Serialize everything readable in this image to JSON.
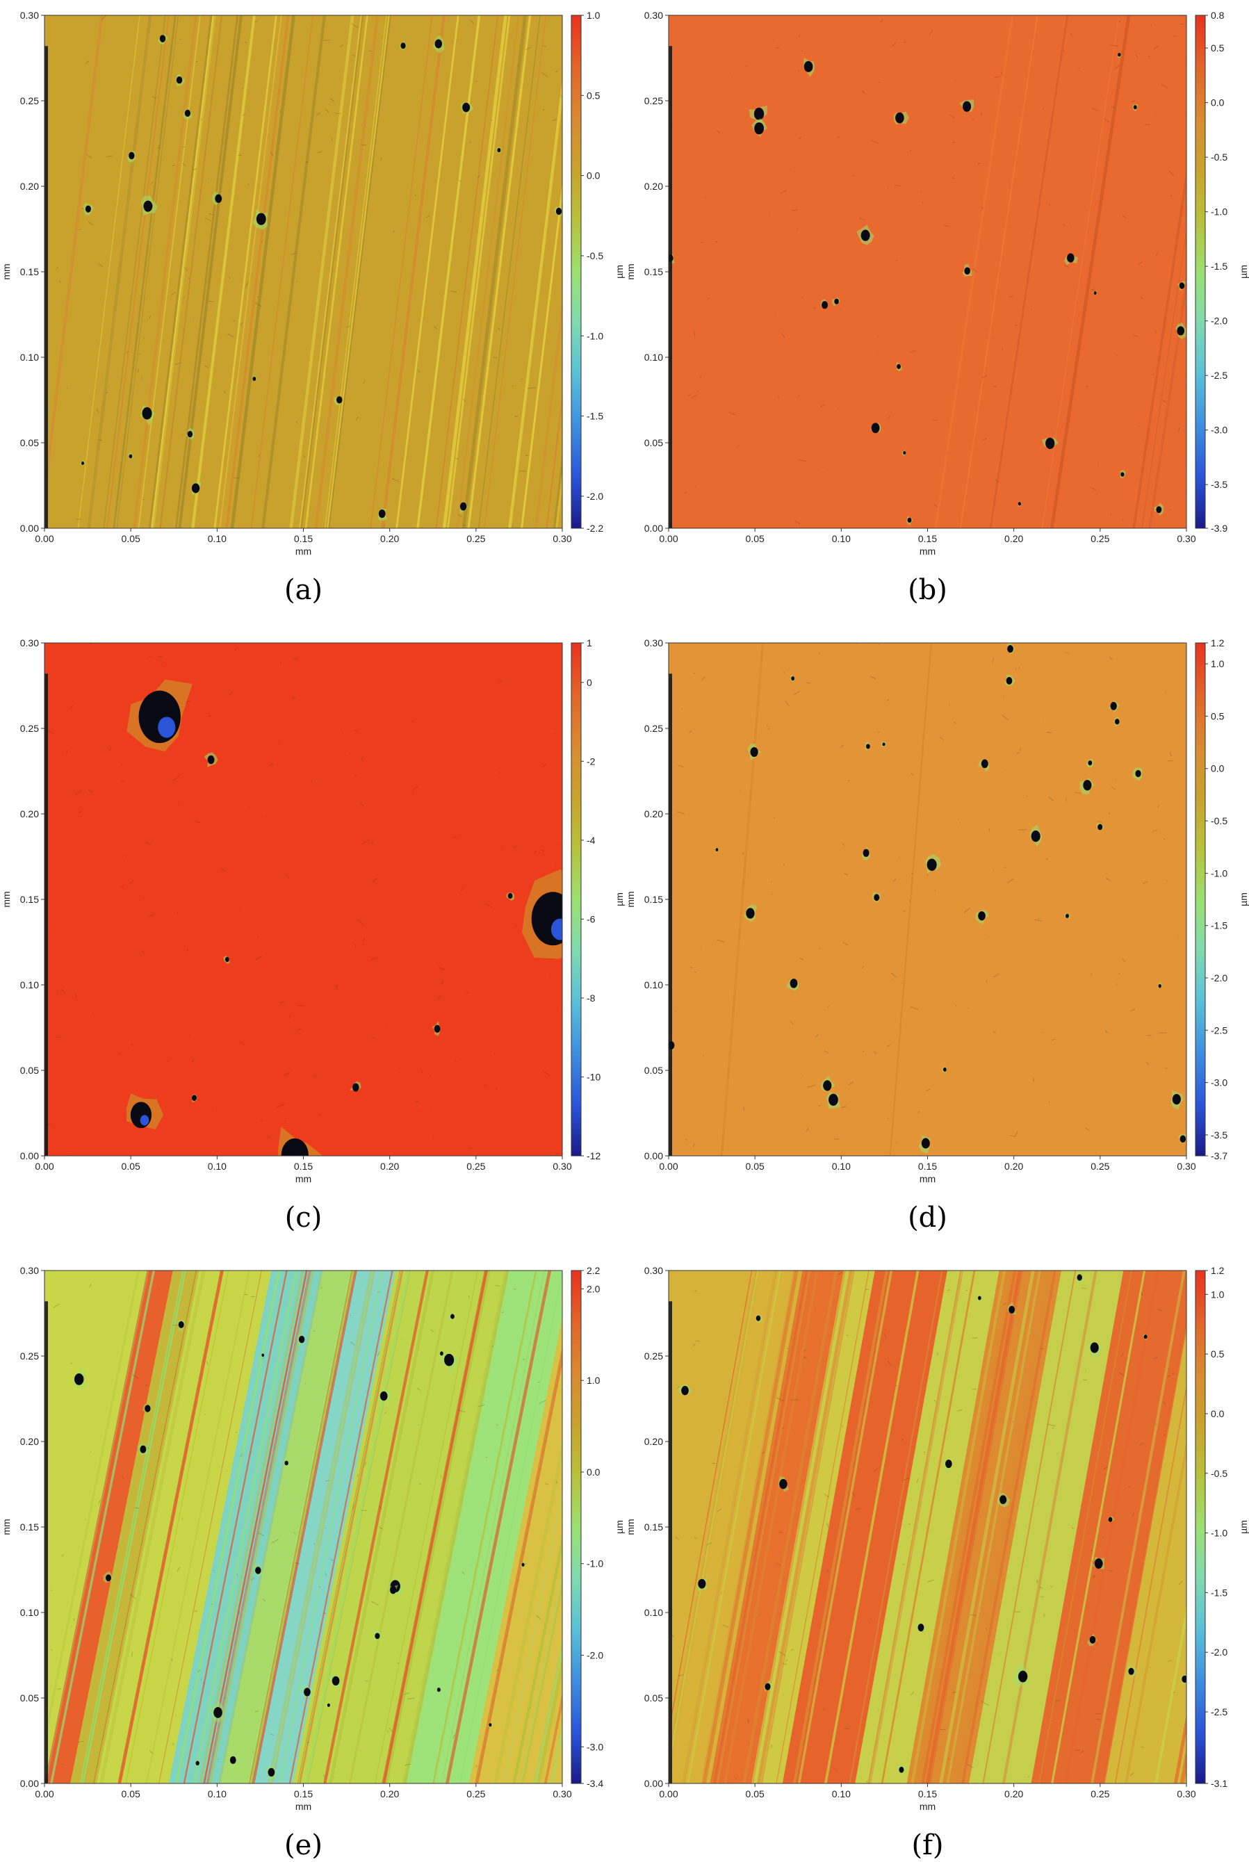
{
  "chart_data": [
    {
      "type": "heatmap",
      "caption": "(a)",
      "xlabel": "mm",
      "ylabel": "mm",
      "xlim": [
        0,
        0.3
      ],
      "ylim": [
        0,
        0.3
      ],
      "x_ticks": [
        "0.00",
        "0.05",
        "0.10",
        "0.15",
        "0.20",
        "0.25",
        "0.30"
      ],
      "y_ticks": [
        "0.00",
        "0.05",
        "0.10",
        "0.15",
        "0.20",
        "0.25",
        "0.30"
      ],
      "colorbar": {
        "label": "µm",
        "min": -2.2,
        "max": 1.0,
        "ticks": [
          {
            "value": 1.0,
            "label": "1.0"
          },
          {
            "value": 0.5,
            "label": "0.5"
          },
          {
            "value": 0.0,
            "label": "0.0"
          },
          {
            "value": -0.5,
            "label": "-0.5"
          },
          {
            "value": -1.0,
            "label": "-1.0"
          },
          {
            "value": -1.5,
            "label": "-1.5"
          },
          {
            "value": -2.0,
            "label": "-2.0"
          },
          {
            "value": -2.2,
            "label": "-2.2"
          }
        ]
      },
      "surface": {
        "base_color": "#c9a22e",
        "stripe_colors": [
          "#e7d23e",
          "#d9862c",
          "#a88a28"
        ],
        "stripe_count": 60,
        "stripe_tilt": 0.12,
        "band_count": 0,
        "defect_count": 22
      }
    },
    {
      "type": "heatmap",
      "caption": "(b)",
      "xlabel": "mm",
      "ylabel": "mm",
      "xlim": [
        0,
        0.3
      ],
      "ylim": [
        0,
        0.3
      ],
      "x_ticks": [
        "0.00",
        "0.05",
        "0.10",
        "0.15",
        "0.20",
        "0.25",
        "0.30"
      ],
      "y_ticks": [
        "0.00",
        "0.05",
        "0.10",
        "0.15",
        "0.20",
        "0.25",
        "0.30"
      ],
      "colorbar": {
        "label": "µm",
        "min": -3.9,
        "max": 0.8,
        "ticks": [
          {
            "value": 0.8,
            "label": "0.8"
          },
          {
            "value": 0.5,
            "label": "0.5"
          },
          {
            "value": 0.0,
            "label": "0.0"
          },
          {
            "value": -0.5,
            "label": "-0.5"
          },
          {
            "value": -1.0,
            "label": "-1.0"
          },
          {
            "value": -1.5,
            "label": "-1.5"
          },
          {
            "value": -2.0,
            "label": "-2.0"
          },
          {
            "value": -2.5,
            "label": "-2.5"
          },
          {
            "value": -3.0,
            "label": "-3.0"
          },
          {
            "value": -3.5,
            "label": "-3.5"
          },
          {
            "value": -3.9,
            "label": "-3.9"
          }
        ]
      },
      "surface": {
        "base_color": "#e96a2e",
        "stripe_colors": [
          "#d25a27",
          "#f07a35"
        ],
        "stripe_count": 10,
        "stripe_tilt": 0.15,
        "band_count": 0,
        "defect_count": 24
      }
    },
    {
      "type": "heatmap",
      "caption": "(c)",
      "xlabel": "mm",
      "ylabel": "mm",
      "xlim": [
        0,
        0.3
      ],
      "ylim": [
        0,
        0.3
      ],
      "x_ticks": [
        "0.00",
        "0.05",
        "0.10",
        "0.15",
        "0.20",
        "0.25",
        "0.30"
      ],
      "y_ticks": [
        "0.00",
        "0.05",
        "0.10",
        "0.15",
        "0.20",
        "0.25",
        "0.30"
      ],
      "colorbar": {
        "label": "µm",
        "min": -12,
        "max": 1,
        "ticks": [
          {
            "value": 1,
            "label": "1"
          },
          {
            "value": 0,
            "label": "0"
          },
          {
            "value": -2,
            "label": "-2"
          },
          {
            "value": -4,
            "label": "-4"
          },
          {
            "value": -6,
            "label": "-6"
          },
          {
            "value": -8,
            "label": "-8"
          },
          {
            "value": -10,
            "label": "-10"
          },
          {
            "value": -12,
            "label": "-12"
          }
        ]
      },
      "surface": {
        "base_color": "#ee3d1c",
        "stripe_colors": [
          "#de3418"
        ],
        "stripe_count": 0,
        "stripe_tilt": 0.0,
        "band_count": 0,
        "defect_count": 10
      }
    },
    {
      "type": "heatmap",
      "caption": "(d)",
      "xlabel": "mm",
      "ylabel": "mm",
      "xlim": [
        0,
        0.3
      ],
      "ylim": [
        0,
        0.3
      ],
      "x_ticks": [
        "0.00",
        "0.05",
        "0.10",
        "0.15",
        "0.20",
        "0.25",
        "0.30"
      ],
      "y_ticks": [
        "0.00",
        "0.05",
        "0.10",
        "0.15",
        "0.20",
        "0.25",
        "0.30"
      ],
      "colorbar": {
        "label": "µm",
        "min": -3.7,
        "max": 1.2,
        "ticks": [
          {
            "value": 1.2,
            "label": "1.2"
          },
          {
            "value": 1.0,
            "label": "1.0"
          },
          {
            "value": 0.5,
            "label": "0.5"
          },
          {
            "value": 0.0,
            "label": "0.0"
          },
          {
            "value": -0.5,
            "label": "-0.5"
          },
          {
            "value": -1.0,
            "label": "-1.0"
          },
          {
            "value": -1.5,
            "label": "-1.5"
          },
          {
            "value": -2.0,
            "label": "-2.0"
          },
          {
            "value": -2.5,
            "label": "-2.5"
          },
          {
            "value": -3.0,
            "label": "-3.0"
          },
          {
            "value": -3.5,
            "label": "-3.5"
          },
          {
            "value": -3.7,
            "label": "-3.7"
          }
        ]
      },
      "surface": {
        "base_color": "#e29436",
        "stripe_colors": [
          "#d9862c"
        ],
        "stripe_count": 2,
        "stripe_tilt": 0.08,
        "band_count": 0,
        "defect_count": 30
      }
    },
    {
      "type": "heatmap",
      "caption": "(e)",
      "xlabel": "mm",
      "ylabel": "mm",
      "xlim": [
        0,
        0.3
      ],
      "ylim": [
        0,
        0.3
      ],
      "x_ticks": [
        "0.00",
        "0.05",
        "0.10",
        "0.15",
        "0.20",
        "0.25",
        "0.30"
      ],
      "y_ticks": [
        "0.00",
        "0.05",
        "0.10",
        "0.15",
        "0.20",
        "0.25",
        "0.30"
      ],
      "colorbar": {
        "label": "µm",
        "min": -3.4,
        "max": 2.2,
        "ticks": [
          {
            "value": 2.2,
            "label": "2.2"
          },
          {
            "value": 2.0,
            "label": "2.0"
          },
          {
            "value": 1.0,
            "label": "1.0"
          },
          {
            "value": 0.0,
            "label": "0.0"
          },
          {
            "value": -1.0,
            "label": "-1.0"
          },
          {
            "value": -2.0,
            "label": "-2.0"
          },
          {
            "value": -3.0,
            "label": "-3.0"
          },
          {
            "value": -3.4,
            "label": "-3.4"
          }
        ]
      },
      "surface": {
        "base_color": "#c9d648",
        "stripe_colors": [
          "#e2552a",
          "#8fe07a",
          "#b5c23c"
        ],
        "stripe_count": 0,
        "stripe_tilt": 0.2,
        "bands": [
          {
            "start": 0.0,
            "end": 0.05,
            "color": "#e8602c"
          },
          {
            "start": 0.05,
            "end": 0.1,
            "color": "#c6b63a"
          },
          {
            "start": 0.24,
            "end": 0.34,
            "color": "#7fd3c2"
          },
          {
            "start": 0.34,
            "end": 0.4,
            "color": "#a8db6a"
          },
          {
            "start": 0.4,
            "end": 0.48,
            "color": "#86d6c8"
          },
          {
            "start": 0.48,
            "end": 0.7,
            "color": "#bfd64c"
          },
          {
            "start": 0.7,
            "end": 0.82,
            "color": "#9ee27a"
          },
          {
            "start": 0.82,
            "end": 1.0,
            "color": "#d9c243"
          }
        ],
        "defect_count": 26
      }
    },
    {
      "type": "heatmap",
      "caption": "(f)",
      "xlabel": "mm",
      "ylabel": "mm",
      "xlim": [
        0,
        0.3
      ],
      "ylim": [
        0,
        0.3
      ],
      "x_ticks": [
        "0.00",
        "0.05",
        "0.10",
        "0.15",
        "0.20",
        "0.25",
        "0.30"
      ],
      "y_ticks": [
        "0.00",
        "0.05",
        "0.10",
        "0.15",
        "0.20",
        "0.25",
        "0.30"
      ],
      "colorbar": {
        "label": "µm",
        "min": -3.1,
        "max": 1.2,
        "ticks": [
          {
            "value": 1.2,
            "label": "1.2"
          },
          {
            "value": 1.0,
            "label": "1.0"
          },
          {
            "value": 0.5,
            "label": "0.5"
          },
          {
            "value": 0.0,
            "label": "0.0"
          },
          {
            "value": -0.5,
            "label": "-0.5"
          },
          {
            "value": -1.0,
            "label": "-1.0"
          },
          {
            "value": -1.5,
            "label": "-1.5"
          },
          {
            "value": -2.0,
            "label": "-2.0"
          },
          {
            "value": -2.5,
            "label": "-2.5"
          },
          {
            "value": -3.1,
            "label": "-3.1"
          }
        ]
      },
      "surface": {
        "base_color": "#d6b23a",
        "stripe_colors": [
          "#e6642c",
          "#c9cf48",
          "#d98a30"
        ],
        "stripe_count": 0,
        "stripe_tilt": 0.18,
        "bands": [
          {
            "start": 0.0,
            "end": 0.08,
            "color": "#d9b23a"
          },
          {
            "start": 0.08,
            "end": 0.16,
            "color": "#e8702e"
          },
          {
            "start": 0.16,
            "end": 0.22,
            "color": "#cfc944"
          },
          {
            "start": 0.22,
            "end": 0.36,
            "color": "#e6642c"
          },
          {
            "start": 0.36,
            "end": 0.46,
            "color": "#c8cf4a"
          },
          {
            "start": 0.46,
            "end": 0.58,
            "color": "#dd8a30"
          },
          {
            "start": 0.58,
            "end": 0.7,
            "color": "#c5cf4c"
          },
          {
            "start": 0.7,
            "end": 0.84,
            "color": "#e46a2e"
          },
          {
            "start": 0.84,
            "end": 1.0,
            "color": "#d4b83c"
          }
        ],
        "defect_count": 20
      }
    }
  ],
  "colormap": [
    "#e8321e",
    "#e2652a",
    "#d98a30",
    "#c9a22e",
    "#b8c13c",
    "#9be070",
    "#7fdab0",
    "#5ac0d8",
    "#3e8ee0",
    "#2a55d8",
    "#1a1a8a"
  ]
}
